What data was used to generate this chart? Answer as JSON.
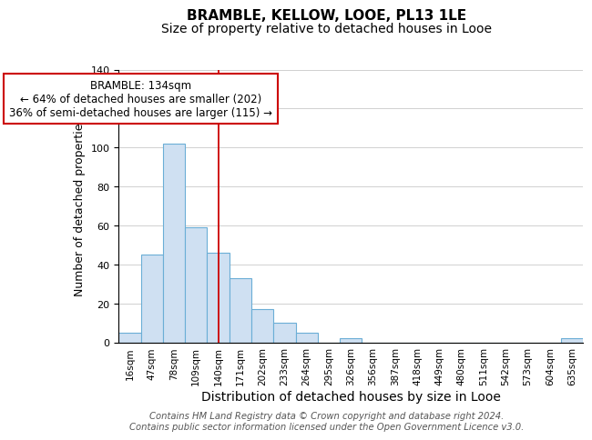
{
  "title": "BRAMBLE, KELLOW, LOOE, PL13 1LE",
  "subtitle": "Size of property relative to detached houses in Looe",
  "xlabel": "Distribution of detached houses by size in Looe",
  "ylabel": "Number of detached properties",
  "bin_labels": [
    "16sqm",
    "47sqm",
    "78sqm",
    "109sqm",
    "140sqm",
    "171sqm",
    "202sqm",
    "233sqm",
    "264sqm",
    "295sqm",
    "326sqm",
    "356sqm",
    "387sqm",
    "418sqm",
    "449sqm",
    "480sqm",
    "511sqm",
    "542sqm",
    "573sqm",
    "604sqm",
    "635sqm"
  ],
  "bar_heights": [
    5,
    45,
    102,
    59,
    46,
    33,
    17,
    10,
    5,
    0,
    2,
    0,
    0,
    0,
    0,
    0,
    0,
    0,
    0,
    0,
    2
  ],
  "bar_color": "#cfe0f2",
  "bar_edge_color": "#6baed6",
  "vline_x": 4,
  "vline_color": "#cc0000",
  "annotation_lines": [
    "BRAMBLE: 134sqm",
    "← 64% of detached houses are smaller (202)",
    "36% of semi-detached houses are larger (115) →"
  ],
  "annotation_box_color": "#ffffff",
  "annotation_box_edge_color": "#cc0000",
  "ylim": [
    0,
    140
  ],
  "yticks": [
    0,
    20,
    40,
    60,
    80,
    100,
    120,
    140
  ],
  "footer_line1": "Contains HM Land Registry data © Crown copyright and database right 2024.",
  "footer_line2": "Contains public sector information licensed under the Open Government Licence v3.0.",
  "title_fontsize": 11,
  "subtitle_fontsize": 10,
  "xlabel_fontsize": 10,
  "ylabel_fontsize": 9,
  "footer_fontsize": 7.2,
  "annotation_fontsize": 8.5,
  "tick_fontsize": 7.5
}
